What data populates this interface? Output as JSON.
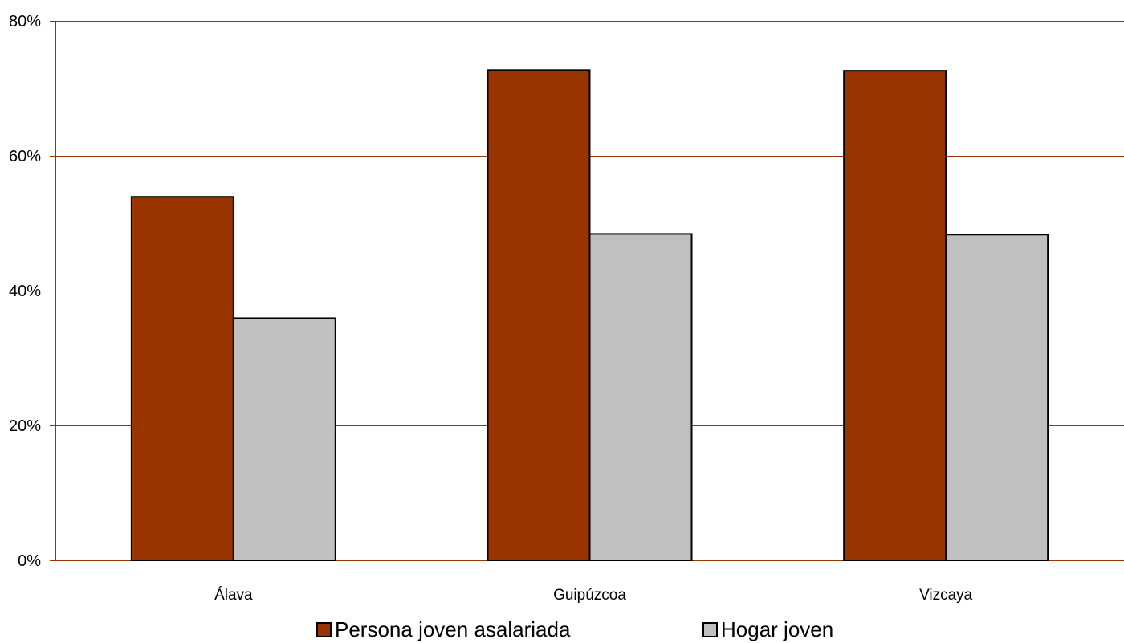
{
  "chart_data": {
    "type": "bar",
    "categories": [
      "Álava",
      "Guipúzcoa",
      "Vizcaya"
    ],
    "series": [
      {
        "name": "Persona joven asalariada",
        "values": [
          53.9,
          72.7,
          72.6
        ],
        "color": "#993300"
      },
      {
        "name": "Hogar joven",
        "values": [
          35.9,
          48.4,
          48.3
        ],
        "color": "#c0c0c0"
      }
    ],
    "ylim": [
      0,
      80
    ],
    "yticks": [
      0,
      20,
      40,
      60,
      80
    ],
    "ytick_labels": [
      "0%",
      "20%",
      "40%",
      "60%",
      "80%"
    ],
    "gridline_color": "#993300",
    "grid": true,
    "legend_position": "bottom"
  }
}
